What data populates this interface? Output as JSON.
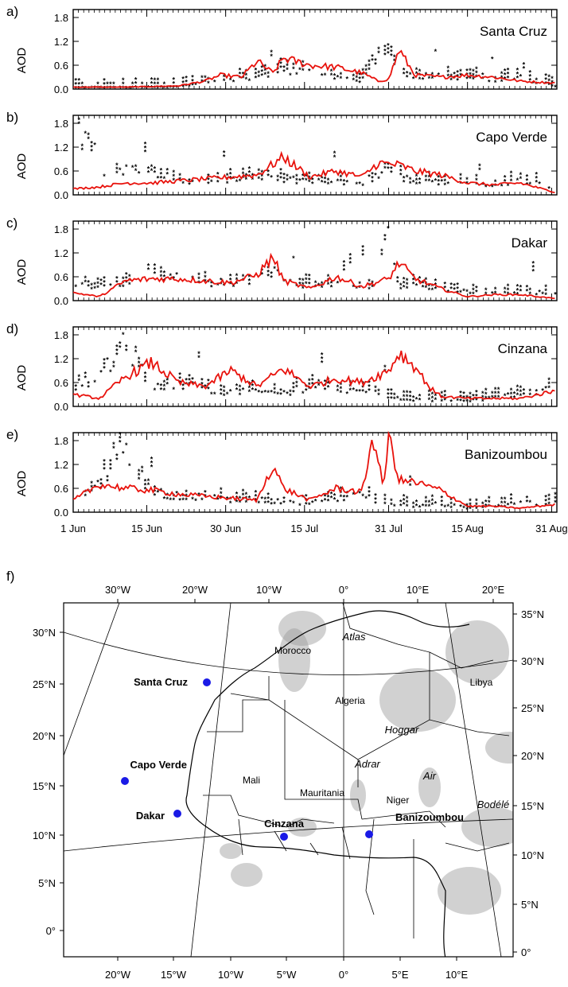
{
  "figure": {
    "panels": [
      {
        "letter": "a)",
        "site": "Santa Cruz"
      },
      {
        "letter": "b)",
        "site": "Capo Verde"
      },
      {
        "letter": "c)",
        "site": "Dakar"
      },
      {
        "letter": "d)",
        "site": "Cinzana"
      },
      {
        "letter": "e)",
        "site": "Banizoumbou"
      }
    ],
    "ylabel": "AOD",
    "y_ticks": [
      "0.0",
      "0.6",
      "1.2",
      "1.8"
    ],
    "x_ticks": [
      "1 Jun",
      "15 Jun",
      "30 Jun",
      "15 Jul",
      "31 Jul",
      "15 Aug",
      "31 Aug"
    ],
    "colors": {
      "model": "#e8120c",
      "observations": "#000000",
      "stations": "#1a1ae6"
    },
    "map": {
      "letter": "f)",
      "top_lon_labels": [
        "30°W",
        "20°W",
        "10°W",
        "0°",
        "10°E",
        "20°E"
      ],
      "bottom_lon_labels": [
        "20°W",
        "15°W",
        "10°W",
        "5°W",
        "0°",
        "5°E",
        "10°E"
      ],
      "left_lat_labels": [
        "30°N",
        "25°N",
        "20°N",
        "15°N",
        "10°N",
        "5°N",
        "0°"
      ],
      "right_lat_labels": [
        "35°N",
        "30°N",
        "25°N",
        "20°N",
        "15°N",
        "10°N",
        "5°N",
        "0°"
      ],
      "stations": [
        "Santa Cruz",
        "Capo Verde",
        "Dakar",
        "Cinzana",
        "Banizoumbou"
      ],
      "countries": [
        "Morocco",
        "Algeria",
        "Libya",
        "Mali",
        "Mauritania",
        "Niger"
      ],
      "features": [
        "Atlas",
        "Hoggar",
        "Adrar",
        "Air",
        "Bodélé"
      ]
    }
  },
  "chart_data": [
    {
      "type": "line",
      "title": "Santa Cruz",
      "ylabel": "AOD",
      "ylim": [
        0,
        2.0
      ],
      "x_domain_days": [
        0,
        92
      ],
      "series": [
        {
          "values_x": [
            0,
            10,
            20,
            25,
            28,
            32,
            35,
            38,
            40,
            45,
            50,
            55,
            58,
            60,
            62,
            65,
            70,
            75,
            80,
            85,
            92
          ],
          "values_y": [
            0.05,
            0.05,
            0.08,
            0.2,
            0.35,
            0.3,
            0.7,
            0.4,
            0.78,
            0.6,
            0.55,
            0.4,
            0.2,
            0.25,
            0.98,
            0.35,
            0.3,
            0.35,
            0.3,
            0.2,
            0.15
          ]
        },
        {
          "values_x": [
            0,
            10,
            20,
            26,
            30,
            35,
            40,
            45,
            50,
            55,
            59,
            62,
            64,
            70,
            75,
            80,
            85,
            92
          ],
          "values_y": [
            0.03,
            0.04,
            0.05,
            0.2,
            0.2,
            0.3,
            0.5,
            0.4,
            0.3,
            0.15,
            1.15,
            0.45,
            0.35,
            0.3,
            0.3,
            0.2,
            0.3,
            0.05
          ]
        }
      ]
    },
    {
      "type": "line",
      "title": "Capo Verde",
      "ylabel": "AOD",
      "ylim": [
        0,
        2.0
      ],
      "x_domain_days": [
        0,
        92
      ],
      "series": [
        {
          "values_x": [
            0,
            5,
            10,
            15,
            20,
            25,
            30,
            35,
            40,
            45,
            50,
            55,
            58,
            62,
            65,
            70,
            75,
            80,
            85,
            92
          ],
          "values_y": [
            0.15,
            0.2,
            0.3,
            0.3,
            0.35,
            0.4,
            0.45,
            0.5,
            0.95,
            0.45,
            0.6,
            0.45,
            0.8,
            0.75,
            0.6,
            0.5,
            0.3,
            0.25,
            0.3,
            0.05
          ]
        },
        {
          "values_x": [
            2,
            5,
            10,
            15,
            20,
            25,
            30,
            35,
            40,
            45,
            50,
            55,
            60,
            65,
            70,
            75,
            80,
            85,
            90
          ],
          "values_y": [
            1.5,
            0.55,
            0.6,
            0.55,
            0.35,
            0.3,
            0.35,
            0.5,
            0.4,
            0.35,
            0.3,
            0.3,
            0.6,
            0.3,
            0.3,
            0.25,
            0.2,
            0.4,
            0.2
          ]
        }
      ]
    },
    {
      "type": "line",
      "title": "Dakar",
      "ylabel": "AOD",
      "ylim": [
        0,
        2.0
      ],
      "x_domain_days": [
        0,
        92
      ],
      "series": [
        {
          "values_x": [
            0,
            5,
            10,
            15,
            20,
            25,
            30,
            35,
            38,
            40,
            45,
            50,
            55,
            60,
            62,
            65,
            70,
            75,
            80,
            85,
            92
          ],
          "values_y": [
            0.2,
            0.1,
            0.5,
            0.55,
            0.55,
            0.5,
            0.45,
            0.65,
            1.1,
            0.5,
            0.3,
            0.6,
            0.35,
            0.55,
            0.95,
            0.55,
            0.3,
            0.1,
            0.15,
            0.15,
            0.05
          ]
        },
        {
          "values_x": [
            10,
            15,
            20,
            25,
            30,
            35,
            38,
            40,
            45,
            50,
            55,
            58,
            60,
            62,
            65,
            70,
            75
          ],
          "values_y": [
            0.4,
            0.75,
            0.55,
            0.4,
            0.35,
            0.5,
            0.75,
            0.45,
            0.35,
            0.4,
            0.3,
            0.5,
            1.85,
            0.4,
            0.35,
            0.3,
            0.2
          ]
        }
      ]
    },
    {
      "type": "line",
      "title": "Cinzana",
      "ylabel": "AOD",
      "ylim": [
        0,
        2.0
      ],
      "x_domain_days": [
        0,
        92
      ],
      "series": [
        {
          "values_x": [
            0,
            5,
            10,
            15,
            20,
            25,
            30,
            35,
            40,
            45,
            50,
            55,
            60,
            62,
            65,
            68,
            70,
            75,
            80,
            85,
            92
          ],
          "values_y": [
            0.3,
            0.2,
            0.75,
            1.1,
            0.6,
            0.5,
            0.9,
            0.5,
            0.95,
            0.5,
            0.7,
            0.6,
            0.9,
            1.35,
            1.0,
            0.45,
            0.25,
            0.2,
            0.2,
            0.2,
            0.4
          ]
        },
        {
          "values_x": [
            0,
            5,
            10,
            15,
            20,
            25,
            30,
            35,
            40,
            45,
            50,
            55,
            60,
            65,
            70,
            75,
            80,
            85,
            90
          ],
          "values_y": [
            0.5,
            0.7,
            1.6,
            0.5,
            0.55,
            0.45,
            0.35,
            0.4,
            0.3,
            0.5,
            0.35,
            0.45,
            0.2,
            0.15,
            0.15,
            0.15,
            0.2,
            0.3,
            0.4
          ]
        }
      ]
    },
    {
      "type": "line",
      "title": "Banizoumbou",
      "ylabel": "AOD",
      "ylim": [
        0,
        2.0
      ],
      "x_domain_days": [
        0,
        92
      ],
      "series": [
        {
          "values_x": [
            0,
            5,
            10,
            15,
            20,
            25,
            30,
            35,
            38,
            40,
            45,
            50,
            55,
            57,
            59,
            60,
            62,
            65,
            70,
            75,
            80,
            85,
            92
          ],
          "values_y": [
            0.3,
            0.7,
            0.6,
            0.55,
            0.45,
            0.4,
            0.35,
            0.3,
            1.2,
            0.6,
            0.3,
            0.6,
            0.5,
            1.95,
            0.6,
            1.95,
            0.8,
            0.75,
            0.55,
            0.15,
            0.15,
            0.1,
            0.2
          ]
        },
        {
          "values_x": [
            0,
            5,
            9,
            15,
            20,
            25,
            30,
            35,
            40,
            45,
            50,
            55,
            60,
            65,
            70,
            75,
            80,
            85,
            90
          ],
          "values_y": [
            0.4,
            0.7,
            1.6,
            0.5,
            0.4,
            0.35,
            0.3,
            0.3,
            0.25,
            0.2,
            0.35,
            0.4,
            0.2,
            0.15,
            0.2,
            0.1,
            0.15,
            0.2,
            0.25
          ]
        }
      ]
    }
  ]
}
